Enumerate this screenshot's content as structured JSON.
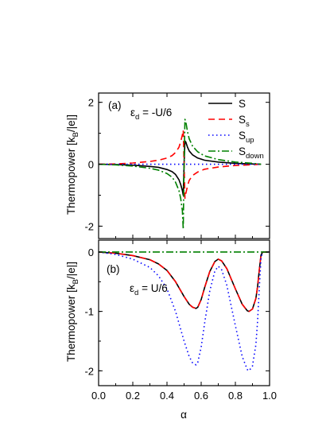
{
  "chart_data": [
    {
      "type": "line",
      "panel_label": "(a)",
      "annotation": {
        "symbol": "ε",
        "sub": "d",
        "rest": " = -U/6"
      },
      "ylabel": "Thermopower [k_B/|e|]",
      "ylabel_parts": {
        "main": "Thermopower [k",
        "sub": "B",
        "rest": "/|e|]"
      },
      "xlim": [
        0.0,
        1.0
      ],
      "ylim": [
        -2.4,
        2.3
      ],
      "yticks": [
        {
          "value": 2,
          "label": "2"
        },
        {
          "value": 0,
          "label": "0"
        },
        {
          "value": -2,
          "label": "-2"
        }
      ],
      "legend_position": "top-right",
      "series": [
        {
          "name": "S",
          "label_main": "S",
          "label_sub": "",
          "color": "#000000",
          "dash": "solid",
          "x": [
            0.0,
            0.1,
            0.2,
            0.3,
            0.35,
            0.4,
            0.43,
            0.45,
            0.47,
            0.48,
            0.49,
            0.495,
            0.5,
            0.505,
            0.51,
            0.52,
            0.53,
            0.55,
            0.58,
            0.62,
            0.7,
            0.8,
            0.9,
            0.95
          ],
          "y": [
            0.0,
            -0.01,
            -0.03,
            -0.07,
            -0.1,
            -0.17,
            -0.24,
            -0.33,
            -0.5,
            -0.65,
            -0.85,
            -1.0,
            0.0,
            0.75,
            0.72,
            0.55,
            0.43,
            0.3,
            0.2,
            0.13,
            0.07,
            0.03,
            0.01,
            0.0
          ]
        },
        {
          "name": "S_s",
          "label_main": "S",
          "label_sub": "s",
          "color": "#ff0000",
          "dash": "8,5",
          "x": [
            0.0,
            0.1,
            0.2,
            0.3,
            0.35,
            0.4,
            0.43,
            0.45,
            0.47,
            0.48,
            0.49,
            0.495,
            0.5,
            0.505,
            0.51,
            0.52,
            0.53,
            0.55,
            0.58,
            0.62,
            0.7,
            0.8,
            0.9,
            0.95
          ],
          "y": [
            0.0,
            0.01,
            0.04,
            0.09,
            0.13,
            0.2,
            0.28,
            0.38,
            0.55,
            0.72,
            0.95,
            1.1,
            0.0,
            -1.1,
            -0.95,
            -0.7,
            -0.52,
            -0.36,
            -0.25,
            -0.16,
            -0.09,
            -0.04,
            -0.015,
            0.0
          ]
        },
        {
          "name": "S_up",
          "label_main": "S",
          "label_sub": "up",
          "color": "#0000ff",
          "dash": "1.5,3.5",
          "x": [
            0.0,
            0.5,
            0.95
          ],
          "y": [
            0.0,
            0.0,
            0.0
          ]
        },
        {
          "name": "S_down",
          "label_main": "S",
          "label_sub": "down",
          "color": "#008000",
          "dash": "9,3,2,3",
          "x": [
            0.0,
            0.1,
            0.2,
            0.3,
            0.35,
            0.4,
            0.43,
            0.45,
            0.47,
            0.48,
            0.49,
            0.495,
            0.5,
            0.505,
            0.51,
            0.52,
            0.53,
            0.55,
            0.58,
            0.62,
            0.7,
            0.8,
            0.9,
            0.95
          ],
          "y": [
            0.0,
            -0.02,
            -0.06,
            -0.13,
            -0.19,
            -0.3,
            -0.42,
            -0.58,
            -0.85,
            -1.1,
            -1.5,
            -2.1,
            0.0,
            1.45,
            1.38,
            1.05,
            0.82,
            0.58,
            0.4,
            0.27,
            0.15,
            0.07,
            0.03,
            0.0
          ]
        }
      ]
    },
    {
      "type": "line",
      "panel_label": "(b)",
      "annotation": {
        "symbol": "ε",
        "sub": "d",
        "rest": " = U/6"
      },
      "ylabel": "Thermopower [k_B/|e|]",
      "ylabel_parts": {
        "main": "Thermopower [k",
        "sub": "B",
        "rest": "/|e|]"
      },
      "xlabel": "α",
      "xlim": [
        0.0,
        1.0
      ],
      "ylim": [
        -2.25,
        0.2
      ],
      "xticks": [
        {
          "value": 0.0,
          "label": "0.0"
        },
        {
          "value": 0.2,
          "label": "0.2"
        },
        {
          "value": 0.4,
          "label": "0.4"
        },
        {
          "value": 0.6,
          "label": "0.6"
        },
        {
          "value": 0.8,
          "label": "0.8"
        },
        {
          "value": 1.0,
          "label": "1.0"
        }
      ],
      "yticks": [
        {
          "value": 0,
          "label": "0"
        },
        {
          "value": -1,
          "label": "-1"
        },
        {
          "value": -2,
          "label": "-2"
        }
      ],
      "series": [
        {
          "name": "S",
          "color": "#000000",
          "dash": "solid",
          "x": [
            0.0,
            0.1,
            0.2,
            0.3,
            0.35,
            0.4,
            0.45,
            0.5,
            0.53,
            0.55,
            0.57,
            0.58,
            0.6,
            0.62,
            0.65,
            0.68,
            0.7,
            0.72,
            0.75,
            0.8,
            0.84,
            0.87,
            0.88,
            0.9,
            0.92,
            0.93,
            0.94,
            0.95,
            0.96,
            1.0
          ],
          "y": [
            0.0,
            -0.02,
            -0.06,
            -0.13,
            -0.2,
            -0.31,
            -0.5,
            -0.75,
            -0.88,
            -0.93,
            -0.95,
            -0.93,
            -0.8,
            -0.6,
            -0.33,
            -0.16,
            -0.12,
            -0.15,
            -0.28,
            -0.62,
            -0.88,
            -0.99,
            -1.0,
            -0.96,
            -0.78,
            -0.58,
            -0.3,
            -0.05,
            0.0,
            0.0
          ]
        },
        {
          "name": "S_s",
          "color": "#ff0000",
          "dash": "8,5",
          "x": [
            0.0,
            0.1,
            0.2,
            0.3,
            0.35,
            0.4,
            0.45,
            0.5,
            0.53,
            0.55,
            0.57,
            0.58,
            0.6,
            0.62,
            0.65,
            0.68,
            0.7,
            0.72,
            0.75,
            0.8,
            0.84,
            0.87,
            0.88,
            0.9,
            0.92,
            0.93,
            0.94,
            0.95,
            0.96,
            1.0
          ],
          "y": [
            0.0,
            -0.02,
            -0.06,
            -0.13,
            -0.2,
            -0.31,
            -0.5,
            -0.75,
            -0.88,
            -0.93,
            -0.95,
            -0.93,
            -0.8,
            -0.6,
            -0.33,
            -0.16,
            -0.12,
            -0.15,
            -0.28,
            -0.62,
            -0.88,
            -0.99,
            -1.0,
            -0.96,
            -0.78,
            -0.58,
            -0.3,
            -0.05,
            0.0,
            0.0
          ]
        },
        {
          "name": "S_up",
          "color": "#0000ff",
          "dash": "1.5,3.5",
          "x": [
            0.0,
            0.1,
            0.2,
            0.3,
            0.35,
            0.4,
            0.45,
            0.5,
            0.53,
            0.55,
            0.57,
            0.58,
            0.6,
            0.62,
            0.65,
            0.68,
            0.7,
            0.72,
            0.75,
            0.8,
            0.84,
            0.87,
            0.88,
            0.9,
            0.92,
            0.93,
            0.94,
            0.95,
            0.96,
            1.0
          ],
          "y": [
            0.0,
            -0.04,
            -0.12,
            -0.26,
            -0.4,
            -0.62,
            -1.0,
            -1.5,
            -1.76,
            -1.87,
            -1.9,
            -1.86,
            -1.6,
            -1.2,
            -0.66,
            -0.32,
            -0.24,
            -0.3,
            -0.56,
            -1.24,
            -1.76,
            -1.98,
            -2.0,
            -1.92,
            -1.56,
            -1.16,
            -0.6,
            -0.1,
            0.0,
            0.0
          ]
        },
        {
          "name": "S_down",
          "color": "#008000",
          "dash": "9,3,2,3",
          "x": [
            0.0,
            1.0
          ],
          "y": [
            0.0,
            0.0
          ]
        }
      ]
    }
  ]
}
